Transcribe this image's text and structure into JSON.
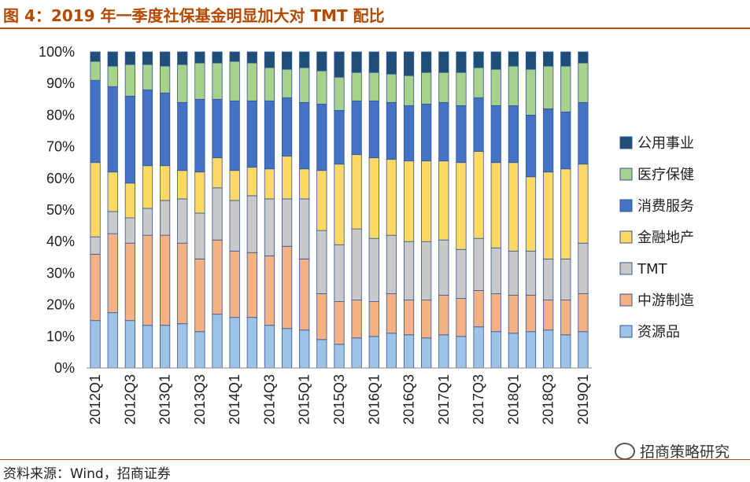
{
  "figure": {
    "title": "图 4：2019 年一季度社保基金明显加大对 TMT 配比",
    "source": "资料来源：Wind，招商证券",
    "watermark": "招商策略研究"
  },
  "chart_data": {
    "type": "bar",
    "stacked": true,
    "percent": true,
    "categories": [
      "2012Q1",
      "2012Q2",
      "2012Q3",
      "2012Q4",
      "2013Q1",
      "2013Q2",
      "2013Q3",
      "2013Q4",
      "2014Q1",
      "2014Q2",
      "2014Q3",
      "2014Q4",
      "2015Q1",
      "2015Q2",
      "2015Q3",
      "2015Q4",
      "2016Q1",
      "2016Q2",
      "2016Q3",
      "2016Q4",
      "2017Q1",
      "2017Q2",
      "2017Q3",
      "2017Q4",
      "2018Q1",
      "2018Q2",
      "2018Q3",
      "2018Q4",
      "2019Q1"
    ],
    "tick_labels": [
      "2012Q1",
      "2012Q3",
      "2013Q1",
      "2013Q3",
      "2014Q1",
      "2014Q3",
      "2015Q1",
      "2015Q3",
      "2016Q1",
      "2016Q3",
      "2017Q1",
      "2017Q3",
      "2018Q1",
      "2018Q3",
      "2019Q1"
    ],
    "ylim": [
      0,
      100
    ],
    "yticks": [
      "0%",
      "10%",
      "20%",
      "30%",
      "40%",
      "50%",
      "60%",
      "70%",
      "80%",
      "90%",
      "100%"
    ],
    "legend_position": "right",
    "grid": false,
    "series": [
      {
        "name": "资源品",
        "color": "#9dc3e6",
        "values": [
          15,
          17.5,
          15,
          13.5,
          13.5,
          14,
          11.5,
          17,
          16,
          16,
          13.5,
          12.5,
          12,
          9,
          7.5,
          9.5,
          10,
          11,
          10.5,
          9.5,
          10.5,
          10,
          13,
          11.5,
          11,
          11.5,
          12,
          10.5,
          11.5
        ]
      },
      {
        "name": "中游制造",
        "color": "#f4b183",
        "values": [
          21,
          25,
          24.5,
          28.5,
          28.5,
          25.5,
          23,
          23.5,
          21,
          20.5,
          22,
          26,
          22.5,
          14.5,
          13.5,
          12,
          11,
          12.5,
          11,
          12,
          12.5,
          12,
          11.5,
          12,
          12,
          11.5,
          9.5,
          11,
          12
        ]
      },
      {
        "name": "TMT",
        "color": "#c9c9c9",
        "values": [
          5.5,
          7,
          8,
          8.5,
          11,
          14,
          14.5,
          16.5,
          16,
          18,
          18,
          15,
          19,
          20,
          18,
          22.5,
          20,
          18.5,
          18.5,
          18.5,
          17.5,
          15.5,
          16.5,
          14.5,
          14,
          14,
          13,
          13,
          16
        ]
      },
      {
        "name": "金融地产",
        "color": "#ffd966",
        "values": [
          23.5,
          12.5,
          11,
          13.5,
          11,
          9,
          13,
          9.5,
          9.5,
          9,
          9.5,
          13.5,
          9.5,
          19,
          25.5,
          23.5,
          25.5,
          24,
          25.5,
          25.5,
          25,
          27.5,
          27.5,
          27,
          28,
          23.5,
          27.5,
          28.5,
          25
        ]
      },
      {
        "name": "消费服务",
        "color": "#4472c4",
        "values": [
          26,
          27,
          27.5,
          24,
          23,
          21.5,
          23,
          18.5,
          22,
          21,
          21.5,
          18.5,
          21,
          21,
          17,
          17,
          18,
          18,
          17.5,
          18,
          18.5,
          18,
          17,
          18,
          18,
          19.5,
          20,
          18,
          19.5
        ]
      },
      {
        "name": "医疗保健",
        "color": "#a9d18e",
        "values": [
          6,
          6.5,
          10,
          8,
          8.5,
          12,
          11.5,
          11.5,
          12.5,
          12,
          10.5,
          9,
          11,
          10.5,
          10.5,
          9,
          9,
          9,
          9.5,
          10,
          9.5,
          10.5,
          9.5,
          11.5,
          12.5,
          14.5,
          13.5,
          14.5,
          12.5
        ]
      },
      {
        "name": "公用事业",
        "color": "#1f4e79",
        "values": [
          3,
          4.5,
          4,
          4,
          4.5,
          4,
          3.5,
          3.5,
          3,
          3.5,
          5,
          5.5,
          5,
          6,
          8,
          6.5,
          6.5,
          7,
          7.5,
          6.5,
          6.5,
          6.5,
          5,
          5.5,
          4.5,
          5.5,
          4.5,
          4.5,
          3.5
        ]
      }
    ]
  }
}
